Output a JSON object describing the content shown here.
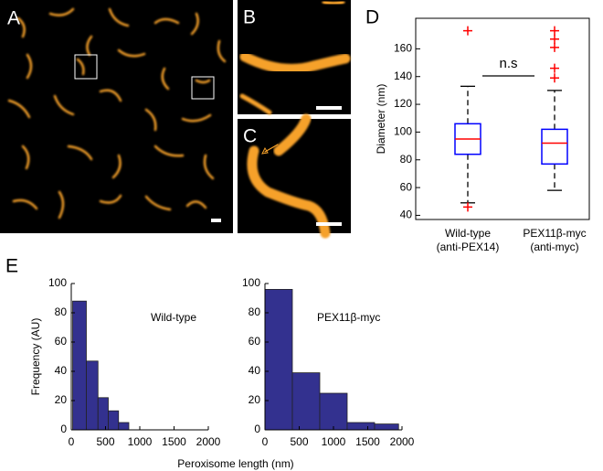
{
  "figure": {
    "panel_labels": [
      "A",
      "B",
      "C",
      "D",
      "E"
    ]
  },
  "chart_data": [
    {
      "type": "boxplot",
      "ylabel": "Diameter (nm)",
      "annotation": "n.s",
      "categories": [
        "Wild-type",
        "PEX11β-myc"
      ],
      "category_sublabels": [
        "(anti-PEX14)",
        "(anti-myc)"
      ],
      "box_color": "#0000ff",
      "median_color": "#ff0000",
      "outlier_color": "#ff0000",
      "ylim": [
        37,
        182
      ],
      "yticks": [
        40,
        60,
        80,
        100,
        120,
        140,
        160
      ],
      "boxes": [
        {
          "whisker_low": 49,
          "q1": 84,
          "median": 95,
          "q3": 106,
          "whisker_high": 133,
          "outliers": [
            173,
            46
          ]
        },
        {
          "whisker_low": 58,
          "q1": 77,
          "median": 92,
          "q3": 102,
          "whisker_high": 130,
          "outliers": [
            173,
            167,
            161,
            146,
            139
          ]
        }
      ]
    },
    {
      "type": "histogram",
      "annotation": "Wild-type",
      "ylabel": "Frequency (AU)",
      "xlabel": "Peroxisome length (nm)",
      "color": "#33318f",
      "bins": [
        20,
        220,
        390,
        540,
        690,
        840
      ],
      "counts": [
        88,
        47,
        22,
        13,
        5
      ],
      "xlim": [
        0,
        2000
      ],
      "xticks": [
        0,
        500,
        1000,
        1500,
        2000
      ],
      "ylim": [
        0,
        100
      ],
      "yticks": [
        0,
        20,
        40,
        60,
        80,
        100
      ]
    },
    {
      "type": "histogram",
      "annotation": "PEX11β-myc",
      "color": "#33318f",
      "bins": [
        0,
        400,
        800,
        1200,
        1600,
        1950
      ],
      "counts": [
        96,
        39,
        25,
        5,
        4
      ],
      "xlim": [
        0,
        2000
      ],
      "xticks": [
        0,
        500,
        1000,
        1500,
        2000
      ],
      "ylim": [
        0,
        100
      ],
      "yticks": [
        0,
        20,
        40,
        60,
        80,
        100
      ]
    }
  ]
}
